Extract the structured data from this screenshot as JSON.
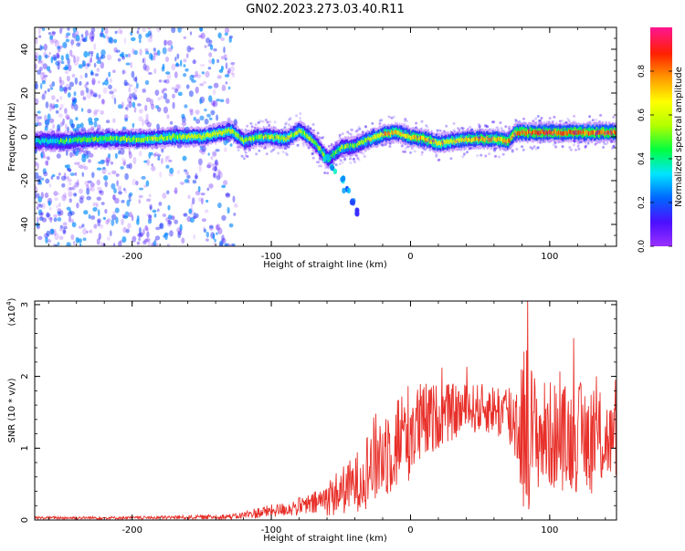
{
  "title": "GN02.2023.273.03.40.R11",
  "chart_data": [
    {
      "type": "heatmap",
      "xlabel": "Height of straight line (km)",
      "ylabel": "Frequency (Hz)",
      "xlim": [
        -270,
        148
      ],
      "ylim": [
        -50,
        50
      ],
      "xticks": [
        -200,
        -100,
        0,
        100
      ],
      "xtick_labels": [
        "-200",
        "-100",
        "0",
        "100"
      ],
      "yticks": [
        -40,
        -20,
        0,
        20,
        40
      ],
      "ytick_labels": [
        "-40",
        "-20",
        "0",
        "20",
        "40"
      ],
      "colorbar": {
        "label": "Normalized spectral amplitude",
        "range": [
          0,
          1
        ],
        "ticks": [
          0.0,
          0.2,
          0.4,
          0.6,
          0.8
        ],
        "tick_labels": [
          "0.0",
          "0.2",
          "0.4",
          "0.6",
          "0.8"
        ],
        "colormap": [
          "#9b30ff",
          "#4b0fff",
          "#0066ff",
          "#00e5ff",
          "#00ff40",
          "#b0ff00",
          "#ffff00",
          "#ff9900",
          "#ff2000",
          "#ff1493"
        ]
      },
      "ridge": [
        {
          "x": -270,
          "y": -2,
          "amp": 0.3
        },
        {
          "x": -250,
          "y": -2,
          "amp": 0.4
        },
        {
          "x": -230,
          "y": -1,
          "amp": 0.45
        },
        {
          "x": -210,
          "y": -1,
          "amp": 0.5
        },
        {
          "x": -190,
          "y": -1,
          "amp": 0.55
        },
        {
          "x": -170,
          "y": 0,
          "amp": 0.55
        },
        {
          "x": -150,
          "y": 0,
          "amp": 0.6
        },
        {
          "x": -130,
          "y": 3,
          "amp": 0.6
        },
        {
          "x": -120,
          "y": -2,
          "amp": 0.5
        },
        {
          "x": -110,
          "y": 0,
          "amp": 0.55
        },
        {
          "x": -100,
          "y": 0,
          "amp": 0.55
        },
        {
          "x": -90,
          "y": -1,
          "amp": 0.6
        },
        {
          "x": -80,
          "y": 3,
          "amp": 0.55
        },
        {
          "x": -70,
          "y": -2,
          "amp": 0.5
        },
        {
          "x": -60,
          "y": -10,
          "amp": 0.45
        },
        {
          "x": -50,
          "y": -5,
          "amp": 0.5
        },
        {
          "x": -40,
          "y": -4,
          "amp": 0.45
        },
        {
          "x": -30,
          "y": -1,
          "amp": 0.55
        },
        {
          "x": -20,
          "y": 1,
          "amp": 0.75
        },
        {
          "x": -10,
          "y": 2,
          "amp": 0.7
        },
        {
          "x": 0,
          "y": 0,
          "amp": 0.7
        },
        {
          "x": 10,
          "y": -1,
          "amp": 0.75
        },
        {
          "x": 20,
          "y": -3,
          "amp": 0.65
        },
        {
          "x": 30,
          "y": -2,
          "amp": 0.65
        },
        {
          "x": 40,
          "y": -1,
          "amp": 0.7
        },
        {
          "x": 50,
          "y": -1,
          "amp": 0.75
        },
        {
          "x": 60,
          "y": -1,
          "amp": 0.75
        },
        {
          "x": 70,
          "y": -2,
          "amp": 0.8
        },
        {
          "x": 75,
          "y": 2,
          "amp": 0.8
        },
        {
          "x": 90,
          "y": 2,
          "amp": 0.85
        },
        {
          "x": 110,
          "y": 2,
          "amp": 0.85
        },
        {
          "x": 130,
          "y": 2,
          "amp": 0.85
        },
        {
          "x": 148,
          "y": 2,
          "amp": 0.85
        }
      ],
      "branch": [
        {
          "x": -60,
          "y": -10,
          "amp": 0.45
        },
        {
          "x": -55,
          "y": -15,
          "amp": 0.4
        },
        {
          "x": -50,
          "y": -20,
          "amp": 0.35
        },
        {
          "x": -46,
          "y": -25,
          "amp": 0.3
        },
        {
          "x": -41,
          "y": -30,
          "amp": 0.25
        },
        {
          "x": -37,
          "y": -35,
          "amp": 0.2
        }
      ],
      "noise_region": [
        -270,
        -125
      ]
    },
    {
      "type": "line",
      "xlabel": "Height of straight line (km)",
      "ylabel": "SNR (10 * v/v)",
      "yexponent_label": "(x10",
      "yexponent_power": "4",
      "yexponent_close": ")",
      "xlim": [
        -270,
        148
      ],
      "ylim": [
        0,
        3.05
      ],
      "xticks": [
        -200,
        -100,
        0,
        100
      ],
      "xtick_labels": [
        "-200",
        "-100",
        "0",
        "100"
      ],
      "yticks": [
        0,
        1,
        2,
        3
      ],
      "ytick_labels": [
        "0",
        "1",
        "2",
        "3"
      ],
      "series": [
        {
          "color": "#e8302a",
          "envelope": [
            {
              "x": -270,
              "mean": 0.03,
              "amp": 0.02
            },
            {
              "x": -200,
              "mean": 0.03,
              "amp": 0.02
            },
            {
              "x": -150,
              "mean": 0.04,
              "amp": 0.03
            },
            {
              "x": -125,
              "mean": 0.05,
              "amp": 0.04
            },
            {
              "x": -110,
              "mean": 0.1,
              "amp": 0.08
            },
            {
              "x": -90,
              "mean": 0.15,
              "amp": 0.1
            },
            {
              "x": -70,
              "mean": 0.22,
              "amp": 0.16
            },
            {
              "x": -55,
              "mean": 0.35,
              "amp": 0.3
            },
            {
              "x": -40,
              "mean": 0.5,
              "amp": 0.4
            },
            {
              "x": -25,
              "mean": 0.85,
              "amp": 0.65
            },
            {
              "x": -10,
              "mean": 1.1,
              "amp": 0.7
            },
            {
              "x": 0,
              "mean": 1.25,
              "amp": 0.7
            },
            {
              "x": 20,
              "mean": 1.45,
              "amp": 0.45
            },
            {
              "x": 40,
              "mean": 1.55,
              "amp": 0.35
            },
            {
              "x": 60,
              "mean": 1.55,
              "amp": 0.35
            },
            {
              "x": 75,
              "mean": 1.4,
              "amp": 0.6
            },
            {
              "x": 82,
              "mean": 1.3,
              "amp": 1.3
            },
            {
              "x": 90,
              "mean": 1.2,
              "amp": 0.8
            },
            {
              "x": 110,
              "mean": 1.15,
              "amp": 0.75
            },
            {
              "x": 130,
              "mean": 1.15,
              "amp": 0.8
            },
            {
              "x": 148,
              "mean": 1.1,
              "amp": 0.5
            }
          ]
        }
      ]
    }
  ]
}
